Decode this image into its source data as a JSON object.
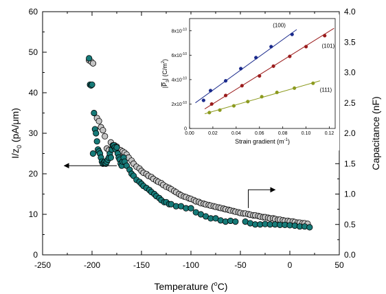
{
  "chart_data": [
    {
      "type": "scatter",
      "xlabel": {
        "main": "Temperature (",
        "sup": "o",
        "tail": "C)"
      },
      "ylabel_left": {
        "main": "I/z",
        "sub": "0",
        "tail": " (pA/μm)"
      },
      "ylabel_right": "Capacitance (nF)",
      "xlim": [
        -250,
        50
      ],
      "xticks": [
        -250,
        -200,
        -150,
        -100,
        -50,
        0,
        50
      ],
      "xtick_labels": [
        "-250",
        "-200",
        "-150",
        "-100",
        "-50",
        "0",
        "50"
      ],
      "ylim_left": [
        0,
        60
      ],
      "yticks_left": [
        0,
        10,
        20,
        30,
        40,
        50,
        60
      ],
      "ytick_labels_left": [
        "0",
        "10",
        "20",
        "30",
        "40",
        "50",
        "60"
      ],
      "ylim_right": [
        0.0,
        4.0
      ],
      "yticks_right": [
        0.0,
        0.5,
        1.0,
        1.5,
        2.0,
        2.5,
        3.0,
        3.5,
        4.0
      ],
      "ytick_labels_right": [
        "0.0",
        "0.5",
        "1.0",
        "1.5",
        "2.0",
        "2.5",
        "3.0",
        "3.5",
        "4.0"
      ],
      "colors": {
        "current": "#167a78",
        "capacitance": "#c4c4c4",
        "edge": "#000000"
      },
      "series": [
        {
          "axis": "left",
          "marker_color": "#167a78",
          "x": [
            -203,
            -202,
            -201,
            -200,
            -199,
            -198,
            -197,
            -196,
            -195,
            -194,
            -193,
            -192,
            -191,
            -190,
            -189,
            -188,
            -187,
            -186,
            -185,
            -184,
            -183,
            -182,
            -181,
            -180,
            -179,
            -178,
            -177,
            -176,
            -175,
            -174,
            -173,
            -172,
            -171,
            -170,
            -169,
            -168,
            -167,
            -165,
            -162,
            -160,
            -158,
            -155,
            -152,
            -150,
            -148,
            -145,
            -142,
            -140,
            -137,
            -135,
            -132,
            -130,
            -127,
            -125,
            -122,
            -120,
            -115,
            -110,
            -105,
            -100,
            -95,
            -90,
            -85,
            -80,
            -75,
            -70,
            -65,
            -60,
            -55,
            -45,
            -40,
            -35,
            -30,
            -25,
            -20,
            -15,
            -10,
            -5,
            0,
            5,
            10,
            15,
            20
          ],
          "y": [
            48.5,
            42,
            41.8,
            42,
            25,
            35,
            31,
            30,
            28,
            26,
            25.5,
            25,
            24,
            23,
            22.5,
            22.8,
            23,
            22.5,
            23,
            23.5,
            24,
            25,
            24,
            26,
            27,
            27,
            26.5,
            26,
            26.5,
            25,
            24,
            23.5,
            22.5,
            22,
            23,
            24,
            23,
            22,
            21,
            20,
            19.5,
            18.5,
            18,
            17.5,
            17,
            16.5,
            16,
            15.5,
            15,
            14.5,
            14,
            13.5,
            13,
            13,
            12.5,
            12.5,
            12,
            12,
            11.5,
            11.5,
            10.5,
            10,
            9.5,
            9,
            9,
            8.5,
            8.2,
            8.4,
            8.2,
            8.2,
            7.8,
            7.5,
            7.5,
            7.6,
            7.5,
            7.5,
            7.4,
            7.4,
            7.3,
            7.2,
            7.0,
            7.0,
            6.8
          ]
        },
        {
          "axis": "right",
          "marker_color": "#c4c4c4",
          "x": [
            -203,
            -201,
            -199,
            -195,
            -193,
            -191,
            -189,
            -187,
            -185,
            -183,
            -181,
            -179,
            -177,
            -175,
            -173,
            -171,
            -169,
            -167,
            -165,
            -163,
            -160,
            -158,
            -155,
            -152,
            -150,
            -148,
            -145,
            -143,
            -140,
            -138,
            -135,
            -133,
            -130,
            -128,
            -125,
            -122,
            -120,
            -117,
            -115,
            -112,
            -110,
            -107,
            -105,
            -102,
            -100,
            -97,
            -95,
            -92,
            -90,
            -87,
            -85,
            -82,
            -80,
            -77,
            -75,
            -72,
            -70,
            -67,
            -65,
            -62,
            -60,
            -57,
            -55,
            -52,
            -50,
            -47,
            -45,
            -42,
            -40,
            -37,
            -35,
            -32,
            -30,
            -27,
            -25,
            -22,
            -20,
            -17,
            -15,
            -12,
            -10,
            -7,
            -5,
            -2,
            0,
            3,
            5,
            8,
            10,
            13,
            15,
            18
          ],
          "y": [
            3.2,
            3.18,
            3.15,
            2.25,
            2.2,
            2.1,
            2.05,
            1.95,
            1.75,
            1.72,
            1.85,
            1.8,
            1.8,
            1.78,
            1.65,
            1.72,
            1.7,
            1.68,
            1.65,
            1.6,
            1.55,
            1.5,
            1.45,
            1.42,
            1.38,
            1.35,
            1.33,
            1.3,
            1.28,
            1.25,
            1.22,
            1.2,
            1.18,
            1.15,
            1.12,
            1.1,
            1.08,
            1.05,
            1.03,
            1.0,
            0.98,
            0.96,
            0.95,
            0.93,
            0.92,
            0.9,
            0.88,
            0.87,
            0.85,
            0.84,
            0.83,
            0.82,
            0.81,
            0.8,
            0.79,
            0.78,
            0.77,
            0.76,
            0.75,
            0.74,
            0.73,
            0.72,
            0.71,
            0.7,
            0.69,
            0.68,
            0.68,
            0.67,
            0.66,
            0.65,
            0.65,
            0.64,
            0.63,
            0.62,
            0.62,
            0.61,
            0.6,
            0.6,
            0.59,
            0.58,
            0.58,
            0.57,
            0.56,
            0.56,
            0.55,
            0.55,
            0.54,
            0.53,
            0.53,
            0.52,
            0.52,
            0.51
          ]
        }
      ]
    },
    {
      "type": "scatter",
      "xlabel": {
        "main": "Strain gradient (m",
        "sup": "-1",
        "tail": ")"
      },
      "ylabel": {
        "pre": "|",
        "bar": "P",
        "sub": "3",
        "mid": "| (C/m",
        "sup": "2",
        "tail": ")"
      },
      "xlim": [
        0.0,
        0.125
      ],
      "xticks": [
        0.0,
        0.02,
        0.04,
        0.06,
        0.08,
        0.1,
        0.12
      ],
      "xtick_labels": [
        "0.00",
        "0.02",
        "0.04",
        "0.06",
        "0.08",
        "0.10",
        "0.12"
      ],
      "ylim": [
        0,
        9e-10
      ],
      "yticks": [
        0,
        2e-10,
        4e-10,
        6e-10,
        8e-10
      ],
      "ytick_labels": [
        {
          "m": "0",
          "e": ""
        },
        {
          "m": "2x10",
          "e": "-10"
        },
        {
          "m": "4x10",
          "e": "-10"
        },
        {
          "m": "6x10",
          "e": "-10"
        },
        {
          "m": "8x10",
          "e": "-10"
        }
      ],
      "series": [
        {
          "name": "(100)",
          "color": "#1a2a8c",
          "x": [
            0.012,
            0.018,
            0.031,
            0.044,
            0.057,
            0.07,
            0.088
          ],
          "y": [
            2.3e-10,
            3.1e-10,
            3.9e-10,
            4.9e-10,
            5.8e-10,
            6.7e-10,
            7.7e-10
          ],
          "fit": [
            [
              0.005,
              2.1e-10
            ],
            [
              0.092,
              8.1e-10
            ]
          ]
        },
        {
          "name": "(101)",
          "color": "#9b1c1c",
          "x": [
            0.019,
            0.031,
            0.045,
            0.06,
            0.072,
            0.086,
            0.1,
            0.116
          ],
          "y": [
            2e-10,
            2.7e-10,
            3.5e-10,
            4.3e-10,
            5.1e-10,
            5.9e-10,
            6.7e-10,
            7.6e-10
          ],
          "fit": [
            [
              0.013,
              1.6e-10
            ],
            [
              0.124,
              8.2e-10
            ]
          ]
        },
        {
          "name": "(111)",
          "color": "#8c9a1e",
          "x": [
            0.017,
            0.026,
            0.038,
            0.05,
            0.062,
            0.075,
            0.09,
            0.106
          ],
          "y": [
            1.3e-10,
            1.5e-10,
            1.85e-10,
            2.2e-10,
            2.6e-10,
            2.95e-10,
            3.3e-10,
            3.7e-10
          ],
          "fit": [
            [
              0.013,
              1.2e-10
            ],
            [
              0.112,
              3.9e-10
            ]
          ]
        }
      ]
    }
  ]
}
